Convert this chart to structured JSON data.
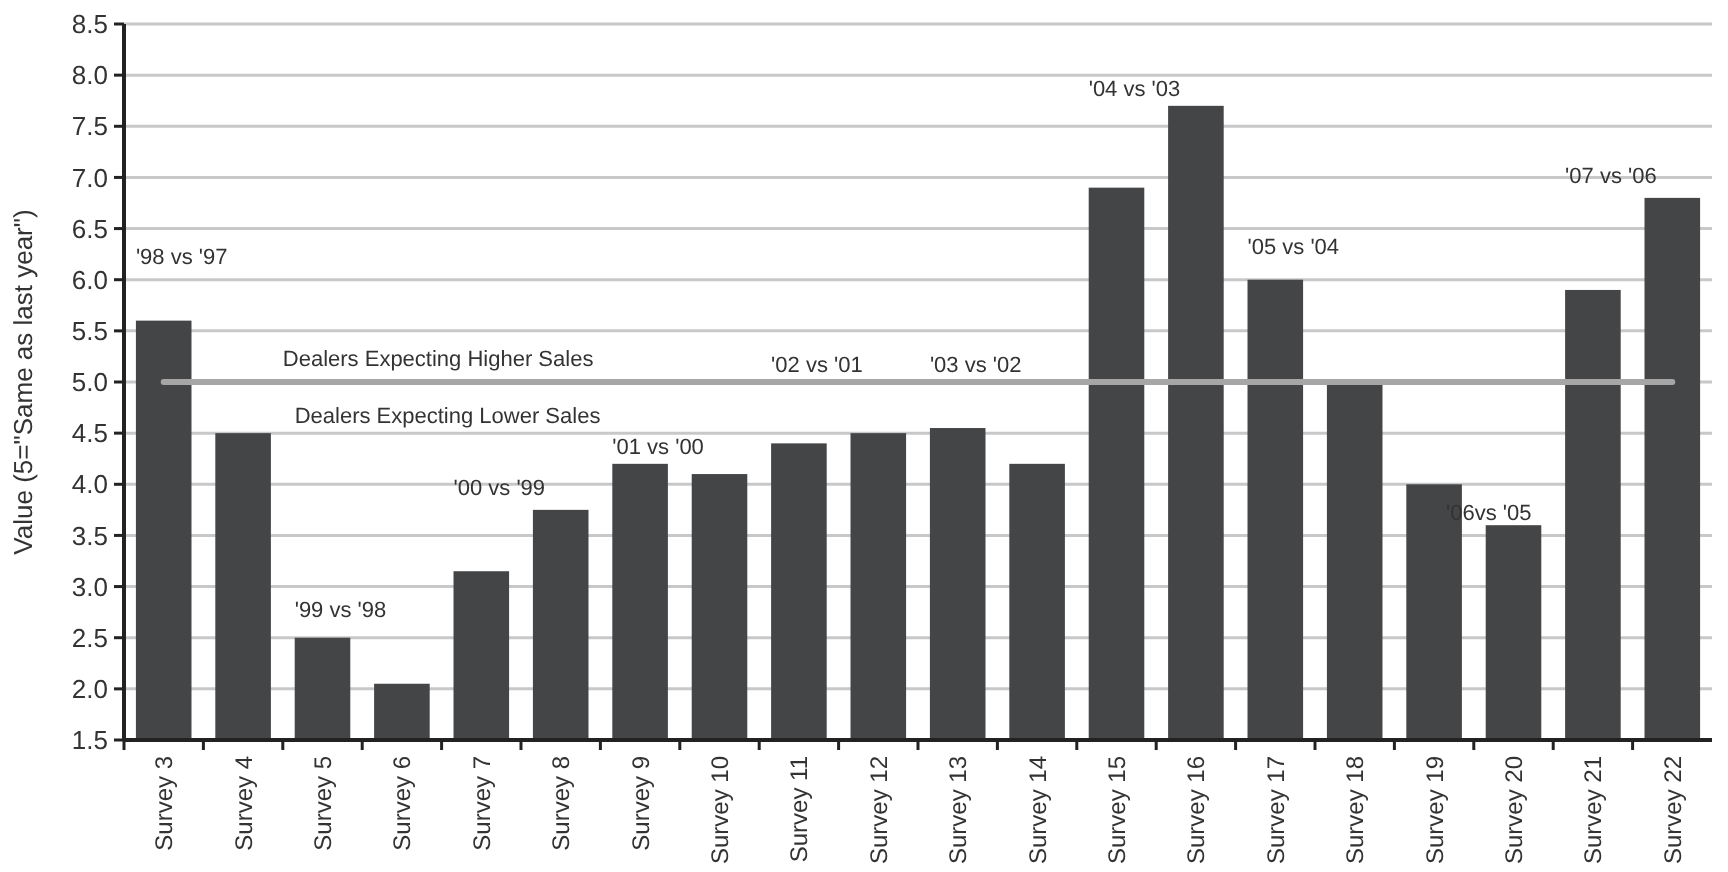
{
  "chart_data": {
    "type": "bar",
    "ylabel": "Value (5=\"Same as last year\")",
    "categories": [
      "Survey 3",
      "Survey 4",
      "Survey 5",
      "Survey 6",
      "Survey 7",
      "Survey 8",
      "Survey 9",
      "Survey 10",
      "Survey 11",
      "Survey 12",
      "Survey 13",
      "Survey 14",
      "Survey 15",
      "Survey 16",
      "Survey 17",
      "Survey 18",
      "Survey 19",
      "Survey 20",
      "Survey 21",
      "Survey 22"
    ],
    "values": [
      5.6,
      4.5,
      2.5,
      2.05,
      3.15,
      3.75,
      4.2,
      4.1,
      4.4,
      4.5,
      4.55,
      4.2,
      6.9,
      7.7,
      6.0,
      5.0,
      4.0,
      3.6,
      5.9,
      6.8
    ],
    "color": "#444547",
    "ylim": [
      1.5,
      8.5
    ],
    "yticks": [
      {
        "value": 1.5,
        "label": "1.5"
      },
      {
        "value": 2,
        "label": "2.0"
      },
      {
        "value": 2.5,
        "label": "2.5"
      },
      {
        "value": 3,
        "label": "3.0"
      },
      {
        "value": 3.5,
        "label": "3.5"
      },
      {
        "value": 4,
        "label": "4.0"
      },
      {
        "value": 4.5,
        "label": "4.5"
      },
      {
        "value": 5,
        "label": "5.0"
      },
      {
        "value": 5.5,
        "label": "5.5"
      },
      {
        "value": 6,
        "label": "6.0"
      },
      {
        "value": 6.5,
        "label": "6.5"
      },
      {
        "value": 7,
        "label": "7.0"
      },
      {
        "value": 7.5,
        "label": "7.5"
      },
      {
        "value": 8,
        "label": "8.0"
      },
      {
        "value": 8.5,
        "label": "8.5"
      }
    ],
    "grid": "y",
    "ref_lines": [
      {
        "axis": "y",
        "value": 5,
        "label": "Dealers Expecting Higher Sales",
        "color": "#a6a6a6"
      }
    ],
    "annotations": [
      "Dealers Expecting Lower Sales",
      "'98 vs '97",
      "'99 vs '98",
      "'00 vs '99",
      "'01 vs '00",
      "'02 vs '01",
      "'03 vs '02",
      "'04 vs '03",
      "'05 vs '04",
      "'06vs '05",
      "'07 vs '06"
    ]
  }
}
